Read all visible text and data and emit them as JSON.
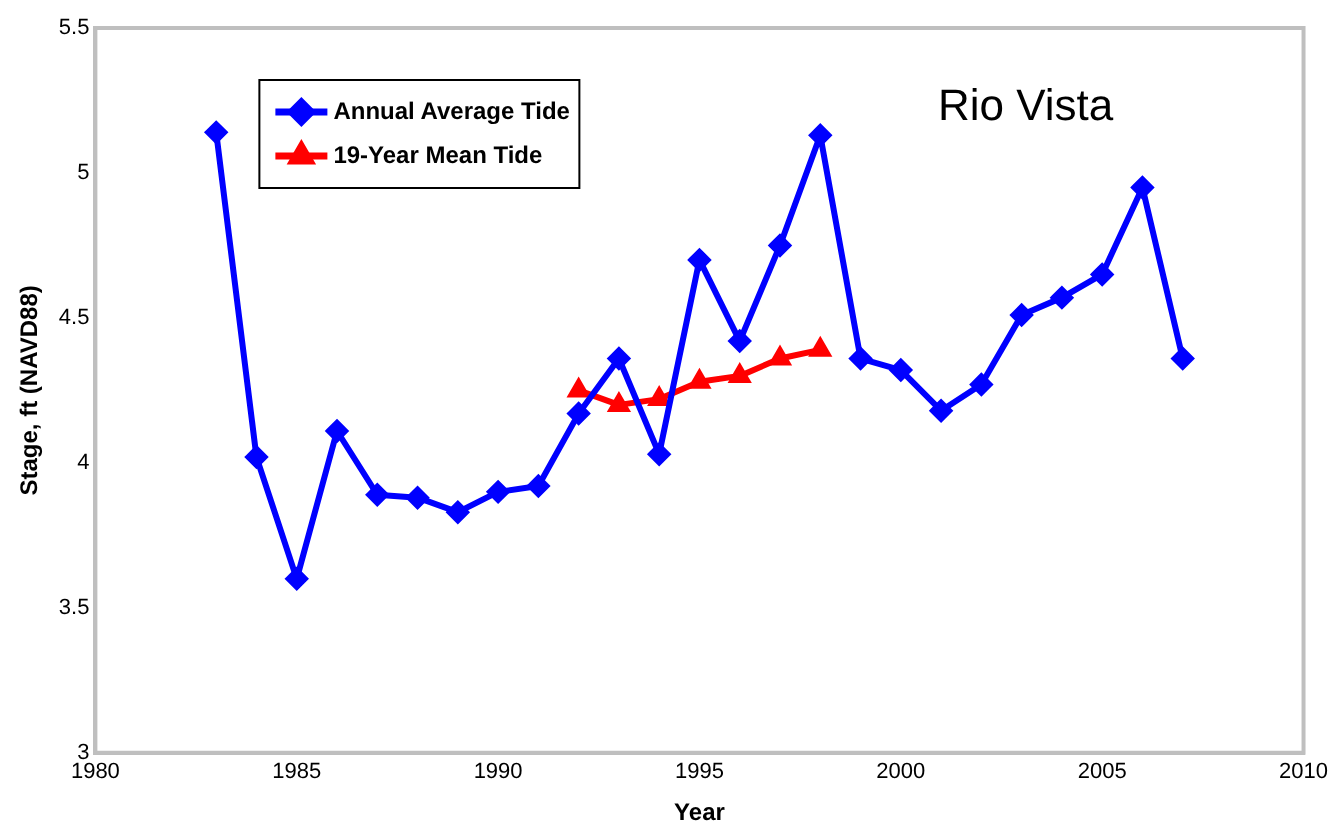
{
  "chart_data": {
    "type": "line",
    "xlabel": "Year",
    "ylabel": "Stage, ft (NAVD88)",
    "annotations": [
      "Rio Vista"
    ],
    "xlim": [
      1980,
      2010
    ],
    "xticks": [
      1980,
      1985,
      1990,
      1995,
      2000,
      2005,
      2010
    ],
    "ylim": [
      3,
      5.5
    ],
    "yticks": [
      3,
      3.5,
      4,
      4.5,
      5,
      5.5
    ],
    "grid": false,
    "legend": "top left",
    "line_style": "solid",
    "series": [
      {
        "name": "Annual Average Tide",
        "color": "#0000ff",
        "marker": "diamond",
        "x": [
          1983,
          1984,
          1985,
          1986,
          1987,
          1988,
          1989,
          1990,
          1991,
          1992,
          1993,
          1994,
          1995,
          1996,
          1997,
          1998,
          1999,
          2000,
          2001,
          2002,
          2003,
          2004,
          2005,
          2006,
          2007
        ],
        "values": [
          5.14,
          4.02,
          3.6,
          4.11,
          3.89,
          3.88,
          3.83,
          3.9,
          3.92,
          4.17,
          4.36,
          4.03,
          4.7,
          4.42,
          4.75,
          5.13,
          4.36,
          4.32,
          4.18,
          4.27,
          4.51,
          4.57,
          4.65,
          4.95,
          4.36
        ]
      },
      {
        "name": "19-Year Mean Tide",
        "color": "#ff0000",
        "marker": "triangle",
        "x": [
          1992,
          1993,
          1994,
          1995,
          1996,
          1997,
          1998
        ],
        "values": [
          4.25,
          4.2,
          4.22,
          4.28,
          4.3,
          4.36,
          4.39
        ]
      }
    ]
  }
}
